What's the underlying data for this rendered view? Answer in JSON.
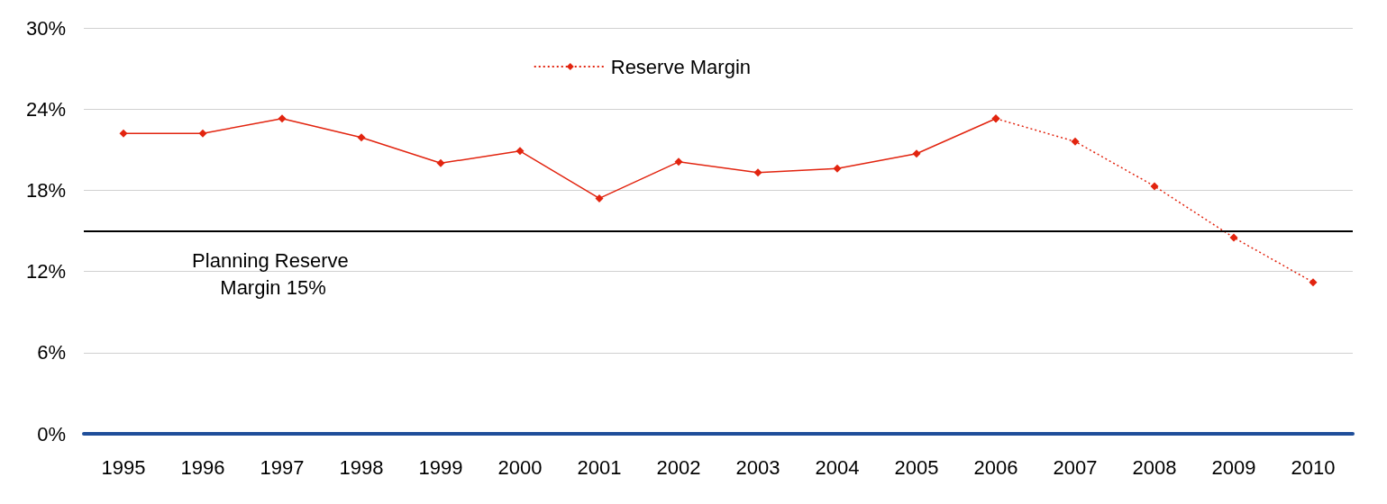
{
  "chart_data": {
    "type": "line",
    "categories": [
      "1995",
      "1996",
      "1997",
      "1998",
      "1999",
      "2000",
      "2001",
      "2002",
      "2003",
      "2004",
      "2005",
      "2006",
      "2007",
      "2008",
      "2009",
      "2010"
    ],
    "series": [
      {
        "color": "#e2240f",
        "line_style": "solid",
        "values": [
          22.2,
          22.2,
          23.3,
          21.9,
          20.0,
          20.9,
          17.4,
          20.1,
          19.3,
          19.6,
          20.7,
          23.3,
          null,
          null,
          null,
          null
        ]
      },
      {
        "name": "Reserve Margin",
        "color": "#e2240f",
        "line_style": "dotted",
        "values": [
          null,
          null,
          null,
          null,
          null,
          null,
          null,
          null,
          null,
          null,
          null,
          23.3,
          21.6,
          18.3,
          14.5,
          11.2
        ]
      }
    ],
    "ylim": [
      0,
      30
    ],
    "yticks": [
      {
        "value": 0,
        "label": "0%"
      },
      {
        "value": 6,
        "label": "6%"
      },
      {
        "value": 12,
        "label": "12%"
      },
      {
        "value": 18,
        "label": "18%"
      },
      {
        "value": 24,
        "label": "24%"
      },
      {
        "value": 30,
        "label": "30%"
      }
    ],
    "ref_lines": [
      {
        "axis": "y",
        "value": 15,
        "label": "Planning Reserve Margin 15%",
        "color": "#000000",
        "line_style": "solid"
      }
    ],
    "grid": "y",
    "legend": "top",
    "marker": "diamond"
  }
}
